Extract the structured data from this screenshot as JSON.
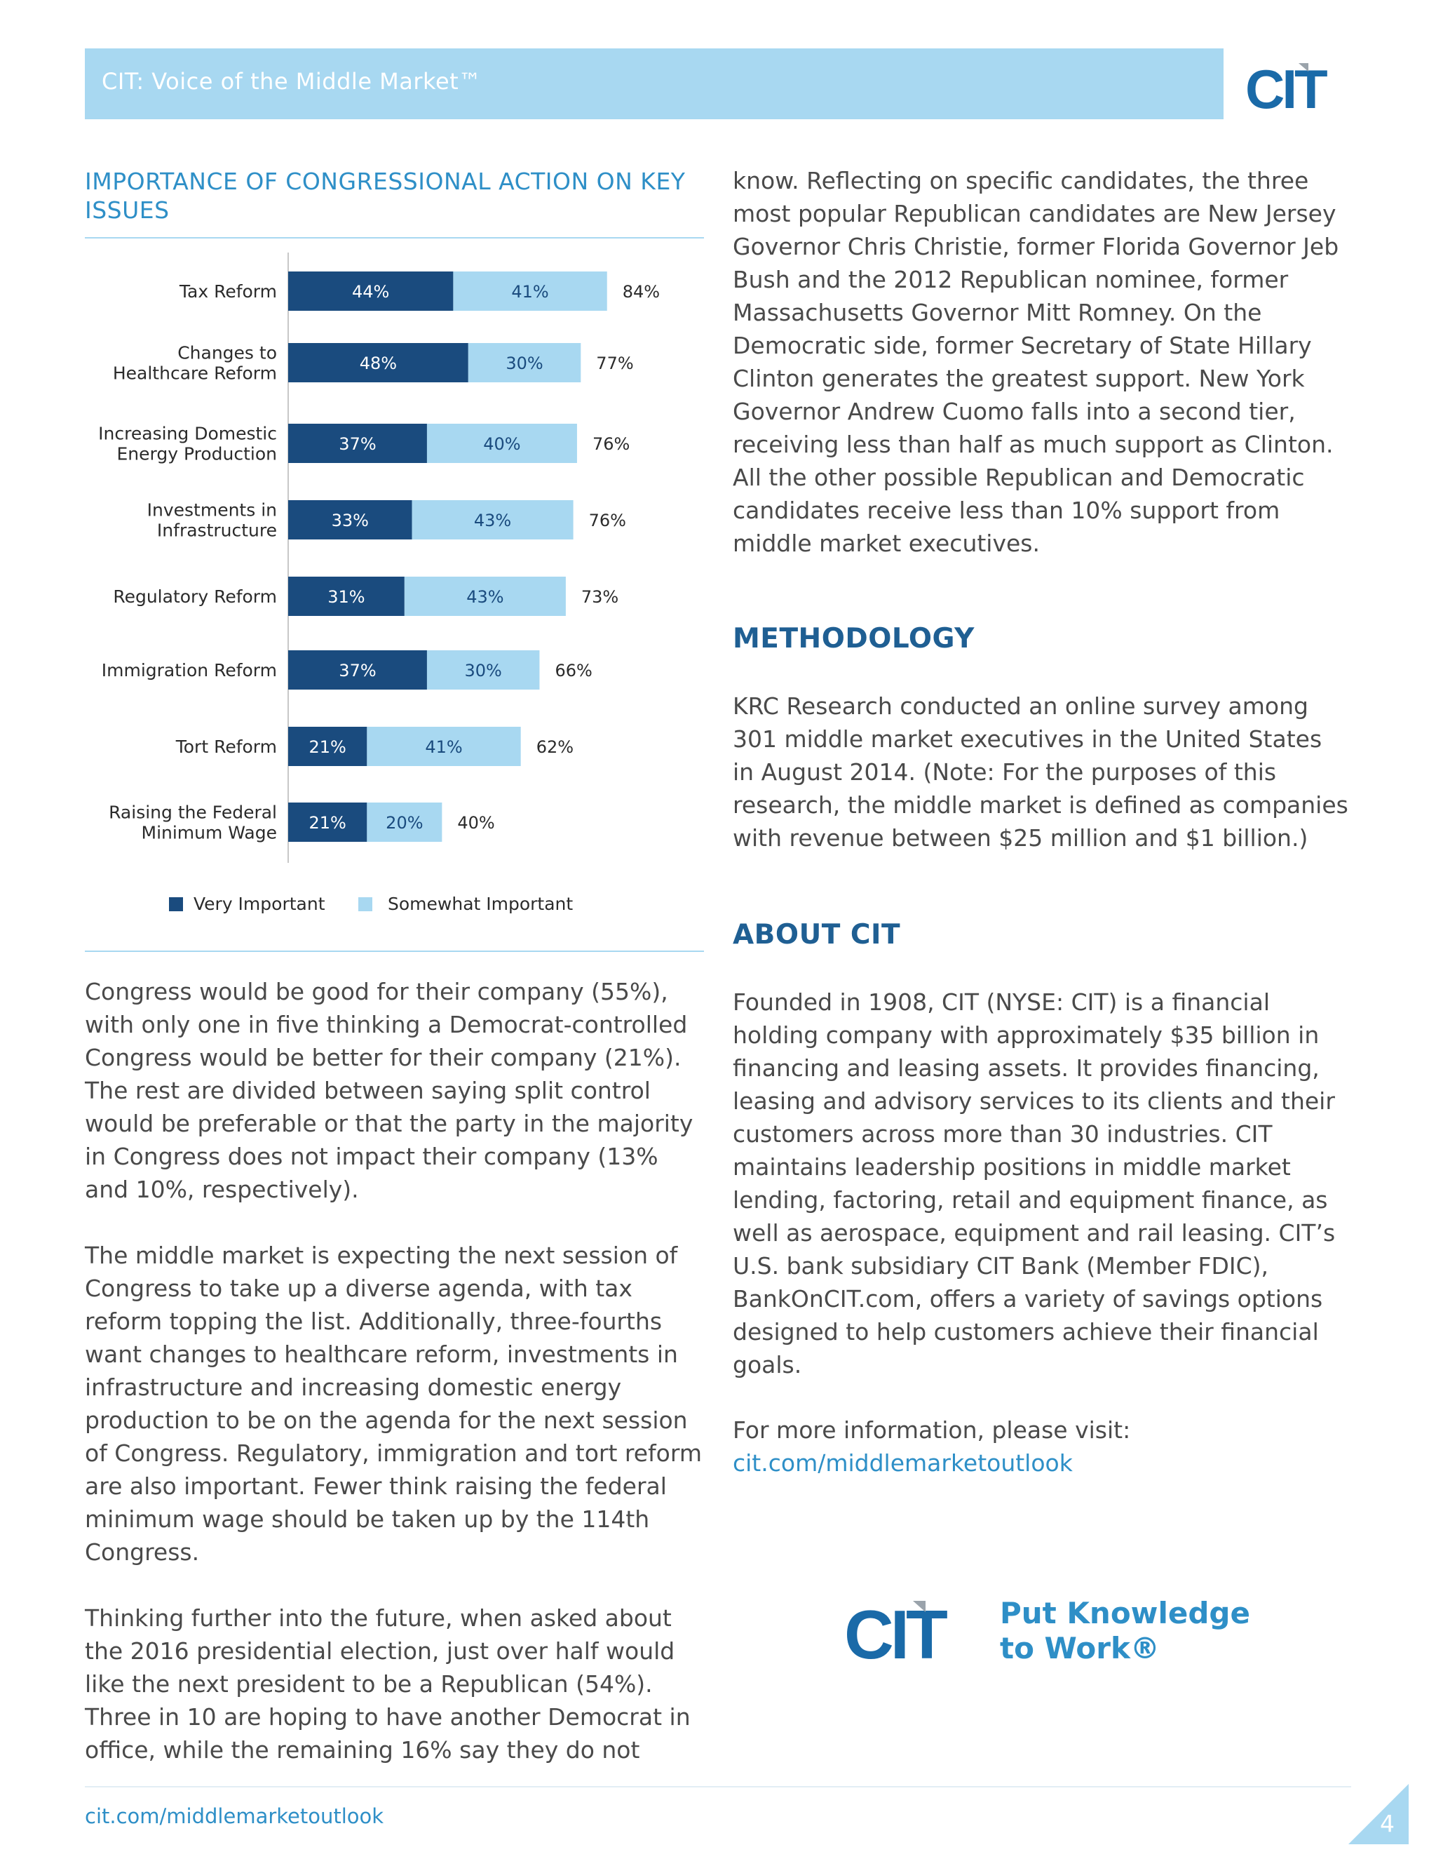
{
  "header": {
    "title": "CIT: Voice of the Middle Market™",
    "logo_text": "CIT"
  },
  "chart_title": "IMPORTANCE OF CONGRESSIONAL ACTION ON KEY ISSUES",
  "chart_data": {
    "type": "bar",
    "orientation": "horizontal",
    "stacked": true,
    "categories": [
      "Tax Reform",
      "Changes to Healthcare Reform",
      "Increasing Domestic Energy Production",
      "Investments in Infrastructure",
      "Regulatory Reform",
      "Immigration Reform",
      "Tort Reform",
      "Raising the Federal Minimum Wage"
    ],
    "category_lines": [
      [
        "Tax Reform"
      ],
      [
        "Changes to",
        "Healthcare Reform"
      ],
      [
        "Increasing Domestic",
        "Energy Production"
      ],
      [
        "Investments in",
        "Infrastructure"
      ],
      [
        "Regulatory Reform"
      ],
      [
        "Immigration Reform"
      ],
      [
        "Tort Reform"
      ],
      [
        "Raising the Federal",
        "Minimum Wage"
      ]
    ],
    "series": [
      {
        "name": "Very Important",
        "color": "#1a4b7e",
        "values": [
          44,
          48,
          37,
          33,
          31,
          37,
          21,
          21
        ]
      },
      {
        "name": "Somewhat Important",
        "color": "#a8d8f1",
        "values": [
          41,
          30,
          40,
          43,
          43,
          30,
          41,
          20
        ]
      }
    ],
    "totals": [
      84,
      77,
      76,
      76,
      73,
      66,
      62,
      40
    ],
    "value_suffix": "%",
    "legend_position": "bottom"
  },
  "left_column": {
    "paragraphs": [
      "Congress would be good for their company (55%), with only one in five thinking a Democrat-controlled Congress would be better for their company (21%). The rest are divided between saying split control would be preferable or that the party in the majority in Congress does not impact their company (13% and 10%, respectively).",
      "The middle market is expecting the next session of Congress to take up a diverse agenda, with tax reform topping the list. Additionally, three-fourths want changes to healthcare reform, investments in infrastructure and increasing domestic energy production to be on the agenda for the next session of Congress. Regulatory, immigration and tort reform are also important. Fewer think raising the federal minimum wage should be taken up by the 114th Congress.",
      "Thinking further into the future, when asked about the 2016 presidential election, just over half would like the next president to be a Republican (54%). Three in 10 are hoping to have another Democrat in office, while the remaining 16% say they do not"
    ]
  },
  "right_column": {
    "intro": "know. Reflecting on specific candidates, the three most popular Republican candidates are New Jersey Governor Chris Christie, former Florida Governor Jeb Bush and the 2012 Republican nominee, former Massachusetts Governor Mitt Romney. On the Democratic side, former Secretary of State Hillary Clinton generates the greatest support. New York Governor Andrew Cuomo falls into a second tier, receiving less than half as much support as Clinton. All the other possible Republican and Democratic candidates receive less than 10% support from middle market executives.",
    "methodology_heading": "METHODOLOGY",
    "methodology_text": "KRC Research conducted an online survey among 301 middle market executives in the United States in August 2014. (Note: For the purposes of this research, the middle market is defined as companies with revenue between $25 million and $1 billion.)",
    "about_heading": "ABOUT CIT",
    "about_text": "Founded in 1908, CIT (NYSE: CIT) is a financial holding company with approximately $35 billion in financing and leasing assets. It provides financing, leasing and advisory services to its clients and their customers across more than 30 industries. CIT maintains leadership positions in middle market lending, factoring, retail and equipment finance, as well as aerospace, equipment and rail leasing. CIT’s U.S. bank subsidiary CIT Bank (Member FDIC), BankOnCIT.com, offers a variety of savings options designed to help customers achieve their financial goals.",
    "more_info": "For more information, please visit:",
    "more_info_link": "cit.com/middlemarketoutlook"
  },
  "tagline": {
    "line1": "Put Knowledge",
    "line2": "to Work®"
  },
  "footer": {
    "link": "cit.com/middlemarketoutlook",
    "page": "4"
  },
  "colors": {
    "accent": "#2e8fc7",
    "navy": "#1a4b7e",
    "light_blue": "#a8d8f1",
    "heading": "#1f5f93"
  }
}
